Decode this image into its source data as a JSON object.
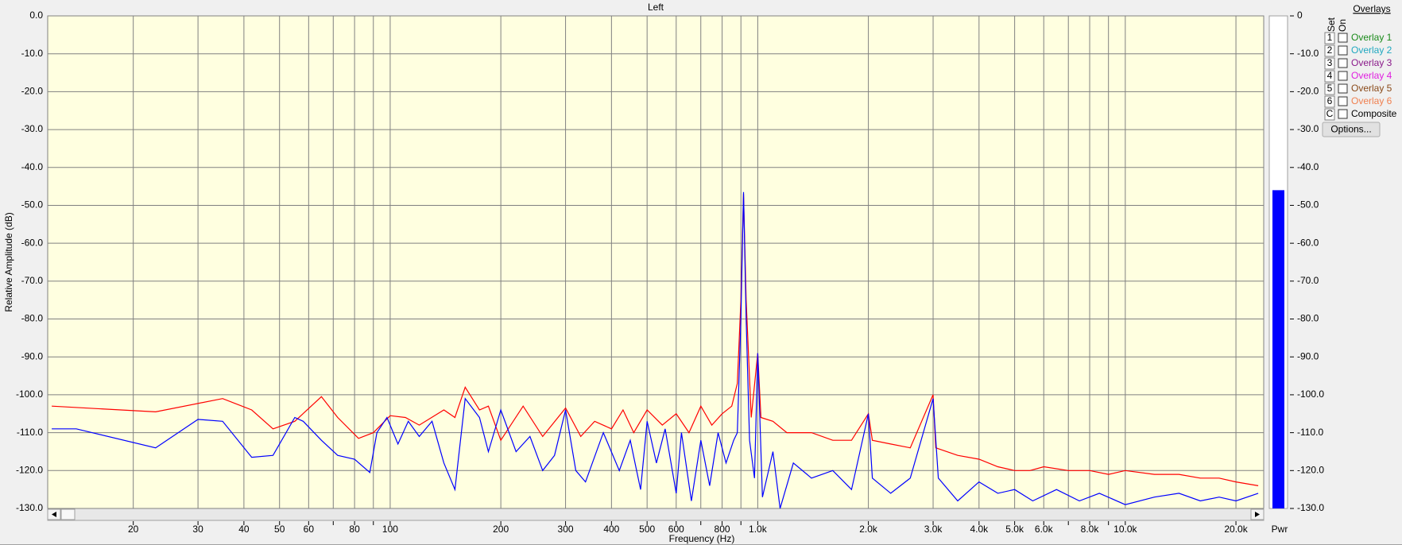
{
  "chart_data": {
    "type": "line",
    "title": "Left",
    "x_label": "Frequency (Hz)",
    "y_label": "Relative Amplitude (dB)",
    "log_x": true,
    "grid": true,
    "background": "#ffffe0",
    "xlim": [
      11.7,
      23800
    ],
    "ylim": [
      -130,
      0
    ],
    "xticks": [
      20,
      30,
      40,
      50,
      60,
      {
        "value": 70,
        "label": null
      },
      80,
      {
        "value": 90,
        "label": null
      },
      100,
      200,
      300,
      400,
      500,
      600,
      {
        "value": 700,
        "label": null
      },
      800,
      {
        "value": 900,
        "label": null
      },
      {
        "value": 1000,
        "label": "1.0k"
      },
      {
        "value": 2000,
        "label": "2.0k"
      },
      {
        "value": 3000,
        "label": "3.0k"
      },
      {
        "value": 4000,
        "label": "4.0k"
      },
      {
        "value": 5000,
        "label": "5.0k"
      },
      {
        "value": 6000,
        "label": "6.0k"
      },
      {
        "value": 7000,
        "label": null
      },
      {
        "value": 8000,
        "label": "8.0k"
      },
      {
        "value": 9000,
        "label": null
      },
      {
        "value": 10000,
        "label": "10.0k"
      },
      {
        "value": 20000,
        "label": "20.0k"
      }
    ],
    "yticks": [
      {
        "value": 0,
        "label": "0.0"
      },
      {
        "value": -10,
        "label": "-10.0"
      },
      {
        "value": -20,
        "label": "-20.0"
      },
      {
        "value": -30,
        "label": "-30.0"
      },
      {
        "value": -40,
        "label": "-40.0"
      },
      {
        "value": -50,
        "label": "-50.0"
      },
      {
        "value": -60,
        "label": "-60.0"
      },
      {
        "value": -70,
        "label": "-70.0"
      },
      {
        "value": -80,
        "label": "-80.0"
      },
      {
        "value": -90,
        "label": "-90.0"
      },
      {
        "value": -100,
        "label": "-100.0"
      },
      {
        "value": -110,
        "label": "-110.0"
      },
      {
        "value": -120,
        "label": "-120.0"
      },
      {
        "value": -130,
        "label": "-130.0"
      }
    ],
    "series": [
      {
        "color": "#ff0000",
        "x": [
          12,
          23,
          35,
          42,
          48,
          55,
          65,
          72,
          82,
          90,
          100,
          110,
          120,
          140,
          150,
          160,
          175,
          185,
          200,
          230,
          260,
          300,
          330,
          360,
          400,
          430,
          460,
          500,
          550,
          600,
          650,
          700,
          750,
          800,
          850,
          880,
          900,
          915,
          930,
          960,
          1000,
          1020,
          1100,
          1200,
          1400,
          1600,
          1800,
          2000,
          2050,
          2300,
          2600,
          3000,
          3050,
          3500,
          4000,
          4500,
          5000,
          5500,
          6000,
          7000,
          8000,
          9000,
          10000,
          12000,
          14000,
          16000,
          18000,
          20000,
          23000
        ],
        "values": [
          -103,
          -104.5,
          -101,
          -104,
          -109,
          -107,
          -100.5,
          -106,
          -111.5,
          -110,
          -105.5,
          -106,
          -108,
          -104,
          -106,
          -98,
          -104,
          -103,
          -112,
          -103,
          -111,
          -103.5,
          -111,
          -107,
          -109,
          -104,
          -110,
          -104,
          -108,
          -105,
          -110,
          -103,
          -108,
          -105,
          -103,
          -97,
          -75,
          -47,
          -75,
          -106,
          -89,
          -106,
          -107,
          -110,
          -110,
          -112,
          -112,
          -105,
          -112,
          -113,
          -114,
          -100,
          -114,
          -116,
          -117,
          -119,
          -120,
          -120,
          -119,
          -120,
          -120,
          -121,
          -120,
          -121,
          -121,
          -122,
          -122,
          -123,
          -124
        ]
      },
      {
        "color": "#0000ff",
        "x": [
          12,
          14,
          23,
          30,
          35,
          42,
          48,
          55,
          58,
          65,
          72,
          80,
          88,
          92,
          98,
          105,
          112,
          120,
          130,
          140,
          150,
          160,
          175,
          185,
          200,
          220,
          240,
          260,
          280,
          300,
          320,
          340,
          380,
          420,
          450,
          480,
          500,
          530,
          560,
          600,
          620,
          660,
          700,
          740,
          780,
          820,
          860,
          880,
          900,
          915,
          930,
          950,
          980,
          1000,
          1030,
          1100,
          1150,
          1250,
          1400,
          1600,
          1800,
          2000,
          2050,
          2300,
          2600,
          3000,
          3100,
          3500,
          4000,
          4500,
          5000,
          5600,
          6500,
          7500,
          8500,
          10000,
          12000,
          14000,
          16000,
          18000,
          20000,
          23000
        ],
        "values": [
          -109,
          -109,
          -114,
          -106.5,
          -107,
          -116.5,
          -116,
          -106,
          -107,
          -112,
          -116,
          -117,
          -120.5,
          -110,
          -106,
          -113,
          -107,
          -111,
          -107,
          -118,
          -125,
          -101,
          -106,
          -115,
          -104,
          -115,
          -111,
          -120,
          -116,
          -104,
          -120,
          -123,
          -110,
          -120,
          -112,
          -125,
          -107,
          -118,
          -109,
          -126,
          -110,
          -128,
          -112,
          -124,
          -110,
          -118,
          -112,
          -110,
          -80,
          -46.5,
          -80,
          -112,
          -122,
          -89,
          -127,
          -115,
          -130,
          -118,
          -122,
          -120,
          -125,
          -105,
          -122,
          -126,
          -122,
          -101,
          -122,
          -128,
          -123,
          -126,
          -125,
          -128,
          -125,
          -128,
          -126,
          -129,
          -127,
          -126,
          -128,
          -127,
          -128,
          -126
        ]
      }
    ]
  },
  "meter": {
    "label": "Pwr",
    "value": -46,
    "color": "#0000ff",
    "ylim": [
      -130,
      0
    ],
    "yticks": [
      {
        "value": 0,
        "label": "0"
      },
      {
        "value": -10,
        "label": "-10.0"
      },
      {
        "value": -20,
        "label": "-20.0"
      },
      {
        "value": -30,
        "label": "-30.0"
      },
      {
        "value": -40,
        "label": "-40.0"
      },
      {
        "value": -50,
        "label": "-50.0"
      },
      {
        "value": -60,
        "label": "-60.0"
      },
      {
        "value": -70,
        "label": "-70.0"
      },
      {
        "value": -80,
        "label": "-80.0"
      },
      {
        "value": -90,
        "label": "-90.0"
      },
      {
        "value": -100,
        "label": "-100.0"
      },
      {
        "value": -110,
        "label": "-110.0"
      },
      {
        "value": -120,
        "label": "-120.0"
      },
      {
        "value": -130,
        "label": "-130.0"
      }
    ]
  },
  "overlays": {
    "title": "Overlays",
    "set_header": "Set",
    "on_header": "On",
    "button": "Options...",
    "items": [
      {
        "set": "1",
        "label": "Overlay 1",
        "color": "#1a8a1a"
      },
      {
        "set": "2",
        "label": "Overlay 2",
        "color": "#20a8c0"
      },
      {
        "set": "3",
        "label": "Overlay 3",
        "color": "#8a1a8a"
      },
      {
        "set": "4",
        "label": "Overlay 4",
        "color": "#e020e0"
      },
      {
        "set": "5",
        "label": "Overlay 5",
        "color": "#8a4a1a"
      },
      {
        "set": "6",
        "label": "Overlay 6",
        "color": "#f08050"
      },
      {
        "set": "C",
        "label": "Composite",
        "color": "#000000"
      }
    ]
  }
}
